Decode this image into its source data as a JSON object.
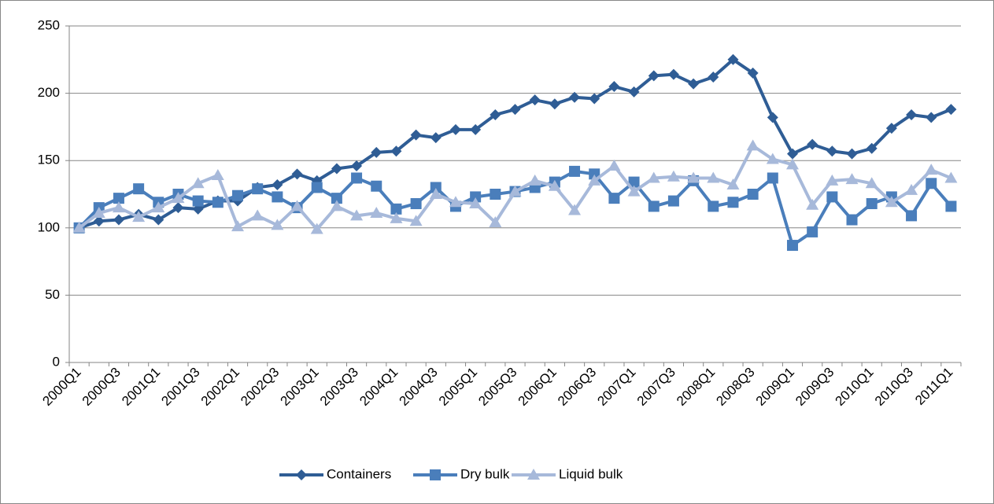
{
  "chart_data": {
    "type": "line",
    "categories": [
      "2000Q1",
      null,
      "2000Q3",
      null,
      "2001Q1",
      null,
      "2001Q3",
      null,
      "2002Q1",
      null,
      "2002Q3",
      null,
      "2003Q1",
      null,
      "2003Q3",
      null,
      "2004Q1",
      null,
      "2004Q3",
      null,
      "2005Q1",
      null,
      "2005Q3",
      null,
      "2006Q1",
      null,
      "2006Q3",
      null,
      "2007Q1",
      null,
      "2007Q3",
      null,
      "2008Q1",
      null,
      "2008Q3",
      null,
      "2009Q1",
      null,
      "2009Q3",
      null,
      "2010Q1",
      null,
      "2010Q3",
      null,
      "2011Q1"
    ],
    "series": [
      {
        "name": "Containers",
        "color": "#2f5d95",
        "marker": "diamond",
        "values": [
          100,
          105,
          106,
          110,
          106,
          115,
          114,
          120,
          120,
          130,
          132,
          140,
          135,
          144,
          146,
          156,
          157,
          169,
          167,
          173,
          173,
          184,
          188,
          195,
          192,
          197,
          196,
          205,
          201,
          213,
          214,
          207,
          212,
          225,
          215,
          182,
          155,
          162,
          157,
          155,
          159,
          174,
          184,
          182,
          188
        ]
      },
      {
        "name": "Dry bulk",
        "color": "#4a7ebb",
        "marker": "square",
        "values": [
          100,
          115,
          122,
          129,
          119,
          125,
          120,
          119,
          124,
          129,
          123,
          115,
          130,
          122,
          137,
          131,
          114,
          118,
          130,
          116,
          123,
          125,
          127,
          130,
          134,
          142,
          140,
          122,
          134,
          116,
          120,
          135,
          116,
          119,
          125,
          137,
          87,
          97,
          123,
          106,
          118,
          123,
          109,
          133,
          116
        ]
      },
      {
        "name": "Liquid bulk",
        "color": "#a7b9da",
        "marker": "triangle",
        "values": [
          100,
          111,
          115,
          108,
          115,
          122,
          133,
          139,
          101,
          109,
          102,
          116,
          99,
          116,
          109,
          111,
          107,
          105,
          125,
          119,
          118,
          104,
          127,
          135,
          131,
          113,
          135,
          146,
          127,
          137,
          138,
          137,
          137,
          132,
          161,
          151,
          147,
          117,
          135,
          136,
          133,
          119,
          128,
          143,
          137
        ]
      }
    ],
    "ylim": [
      0,
      250
    ],
    "yticks": [
      0,
      50,
      100,
      150,
      200,
      250
    ],
    "grid": true,
    "legend": "bottom"
  }
}
